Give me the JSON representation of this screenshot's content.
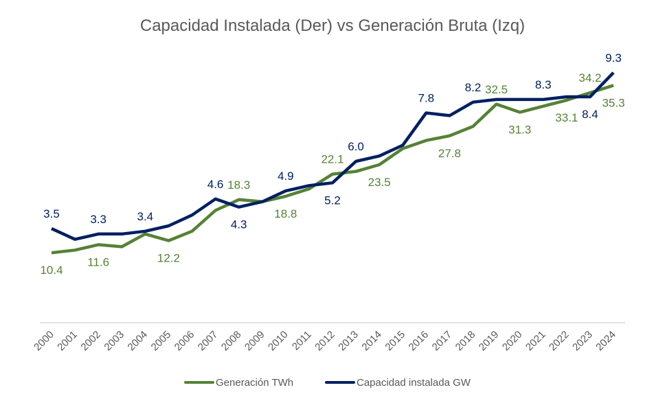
{
  "chart_data": {
    "type": "line",
    "title": "Capacidad Instalada (Der) vs Generación Bruta (Izq)",
    "xlabel": "",
    "ylabel_left": "",
    "ylabel_right": "",
    "grid": false,
    "legend_position": "bottom",
    "categories": [
      "2000",
      "2001",
      "2002",
      "2003",
      "2004",
      "2005",
      "2006",
      "2007",
      "2008",
      "2009",
      "2010",
      "2011",
      "2012",
      "2013",
      "2014",
      "2015",
      "2016",
      "2017",
      "2018",
      "2019",
      "2020",
      "2021",
      "2022",
      "2023",
      "2024"
    ],
    "series": [
      {
        "name": "Generación TWh",
        "axis": "left",
        "color": "#548235",
        "ylim": [
          0,
          48
        ],
        "values": [
          10.4,
          10.8,
          11.6,
          11.3,
          13.2,
          12.2,
          13.6,
          16.7,
          18.3,
          18.0,
          18.8,
          19.9,
          22.1,
          22.5,
          23.5,
          25.9,
          27.1,
          27.8,
          29.2,
          32.5,
          31.3,
          32.2,
          33.1,
          34.2,
          35.3
        ],
        "labels": [
          {
            "year": "2000",
            "text": "10.4",
            "position": "below"
          },
          {
            "year": "2002",
            "text": "11.6",
            "position": "below"
          },
          {
            "year": "2005",
            "text": "12.2",
            "position": "below"
          },
          {
            "year": "2008",
            "text": "18.3",
            "position": "above"
          },
          {
            "year": "2010",
            "text": "18.8",
            "position": "below"
          },
          {
            "year": "2012",
            "text": "22.1",
            "position": "above"
          },
          {
            "year": "2014",
            "text": "23.5",
            "position": "below"
          },
          {
            "year": "2017",
            "text": "27.8",
            "position": "below"
          },
          {
            "year": "2019",
            "text": "32.5",
            "position": "above"
          },
          {
            "year": "2020",
            "text": "31.3",
            "position": "below"
          },
          {
            "year": "2022",
            "text": "33.1",
            "position": "below"
          },
          {
            "year": "2023",
            "text": "34.2",
            "position": "above"
          },
          {
            "year": "2024",
            "text": "35.3",
            "position": "below"
          }
        ]
      },
      {
        "name": "Capacidad instalada GW",
        "axis": "right",
        "color": "#002060",
        "ylim": [
          0,
          12
        ],
        "values": [
          3.5,
          3.1,
          3.3,
          3.3,
          3.4,
          3.6,
          4.0,
          4.6,
          4.3,
          4.5,
          4.9,
          5.1,
          5.2,
          6.0,
          6.2,
          6.6,
          7.8,
          7.7,
          8.2,
          8.3,
          8.3,
          8.3,
          8.4,
          8.4,
          9.3
        ],
        "labels": [
          {
            "year": "2000",
            "text": "3.5",
            "position": "above"
          },
          {
            "year": "2002",
            "text": "3.3",
            "position": "above"
          },
          {
            "year": "2004",
            "text": "3.4",
            "position": "above"
          },
          {
            "year": "2007",
            "text": "4.6",
            "position": "above"
          },
          {
            "year": "2008",
            "text": "4.3",
            "position": "below"
          },
          {
            "year": "2010",
            "text": "4.9",
            "position": "above"
          },
          {
            "year": "2012",
            "text": "5.2",
            "position": "below"
          },
          {
            "year": "2013",
            "text": "6.0",
            "position": "above"
          },
          {
            "year": "2016",
            "text": "7.8",
            "position": "above"
          },
          {
            "year": "2018",
            "text": "8.2",
            "position": "above"
          },
          {
            "year": "2021",
            "text": "8.3",
            "position": "above"
          },
          {
            "year": "2023",
            "text": "8.4",
            "position": "below"
          },
          {
            "year": "2024",
            "text": "9.3",
            "position": "above"
          }
        ]
      }
    ]
  }
}
